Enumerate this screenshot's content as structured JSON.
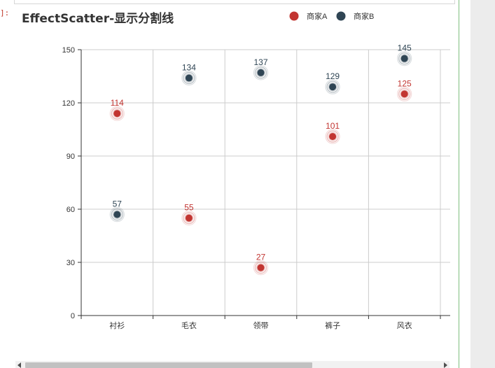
{
  "notebook": {
    "prompt": "]:"
  },
  "colors": {
    "series_a": "#c23531",
    "series_b": "#2f4554",
    "axis": "#333333",
    "grid": "#cccccc"
  },
  "chart_data": {
    "type": "scatter",
    "effect": "ripple",
    "title": "EffectScatter-显示分割线",
    "categories": [
      "衬衫",
      "毛衣",
      "领带",
      "裤子",
      "风衣"
    ],
    "series": [
      {
        "name": "商家A",
        "values": [
          114,
          55,
          27,
          101,
          125
        ],
        "color": "#c23531"
      },
      {
        "name": "商家B",
        "values": [
          57,
          134,
          137,
          129,
          145
        ],
        "color": "#2f4554"
      }
    ],
    "ylim": [
      0,
      150
    ],
    "yticks": [
      0,
      30,
      60,
      90,
      120,
      150
    ],
    "split_lines": true,
    "legend_position": "top-right",
    "show_labels": true
  }
}
